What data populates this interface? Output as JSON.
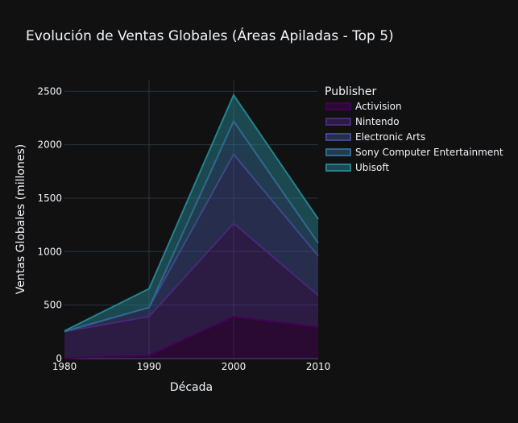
{
  "chart_data": {
    "type": "area",
    "stacked": true,
    "title": "Evolución de Ventas Globales (Áreas Apiladas - Top 5)",
    "xlabel": "Década",
    "ylabel": "Ventas Globales (millones)",
    "x": [
      1980,
      1990,
      2000,
      2010
    ],
    "xlim": [
      1980,
      2010
    ],
    "ylim": [
      0,
      2600
    ],
    "xticks": [
      "1980",
      "1990",
      "2000",
      "2010"
    ],
    "yticks": [
      "0",
      "500",
      "1000",
      "1500",
      "2000",
      "2500"
    ],
    "grid": true,
    "legend_title": "Publisher",
    "legend_position": "top-right",
    "series": [
      {
        "name": "Activision",
        "values": [
          3,
          28,
          390,
          295
        ],
        "color": "#440154"
      },
      {
        "name": "Nintendo",
        "values": [
          250,
          365,
          875,
          295
        ],
        "color": "#482878"
      },
      {
        "name": "Electronic Arts",
        "values": [
          0,
          85,
          645,
          370
        ],
        "color": "#3e4989"
      },
      {
        "name": "Sony Computer Entertainment",
        "values": [
          0,
          0,
          310,
          120
        ],
        "color": "#31688e"
      },
      {
        "name": "Ubisoft",
        "values": [
          5,
          175,
          245,
          225
        ],
        "color": "#26828e"
      }
    ]
  }
}
